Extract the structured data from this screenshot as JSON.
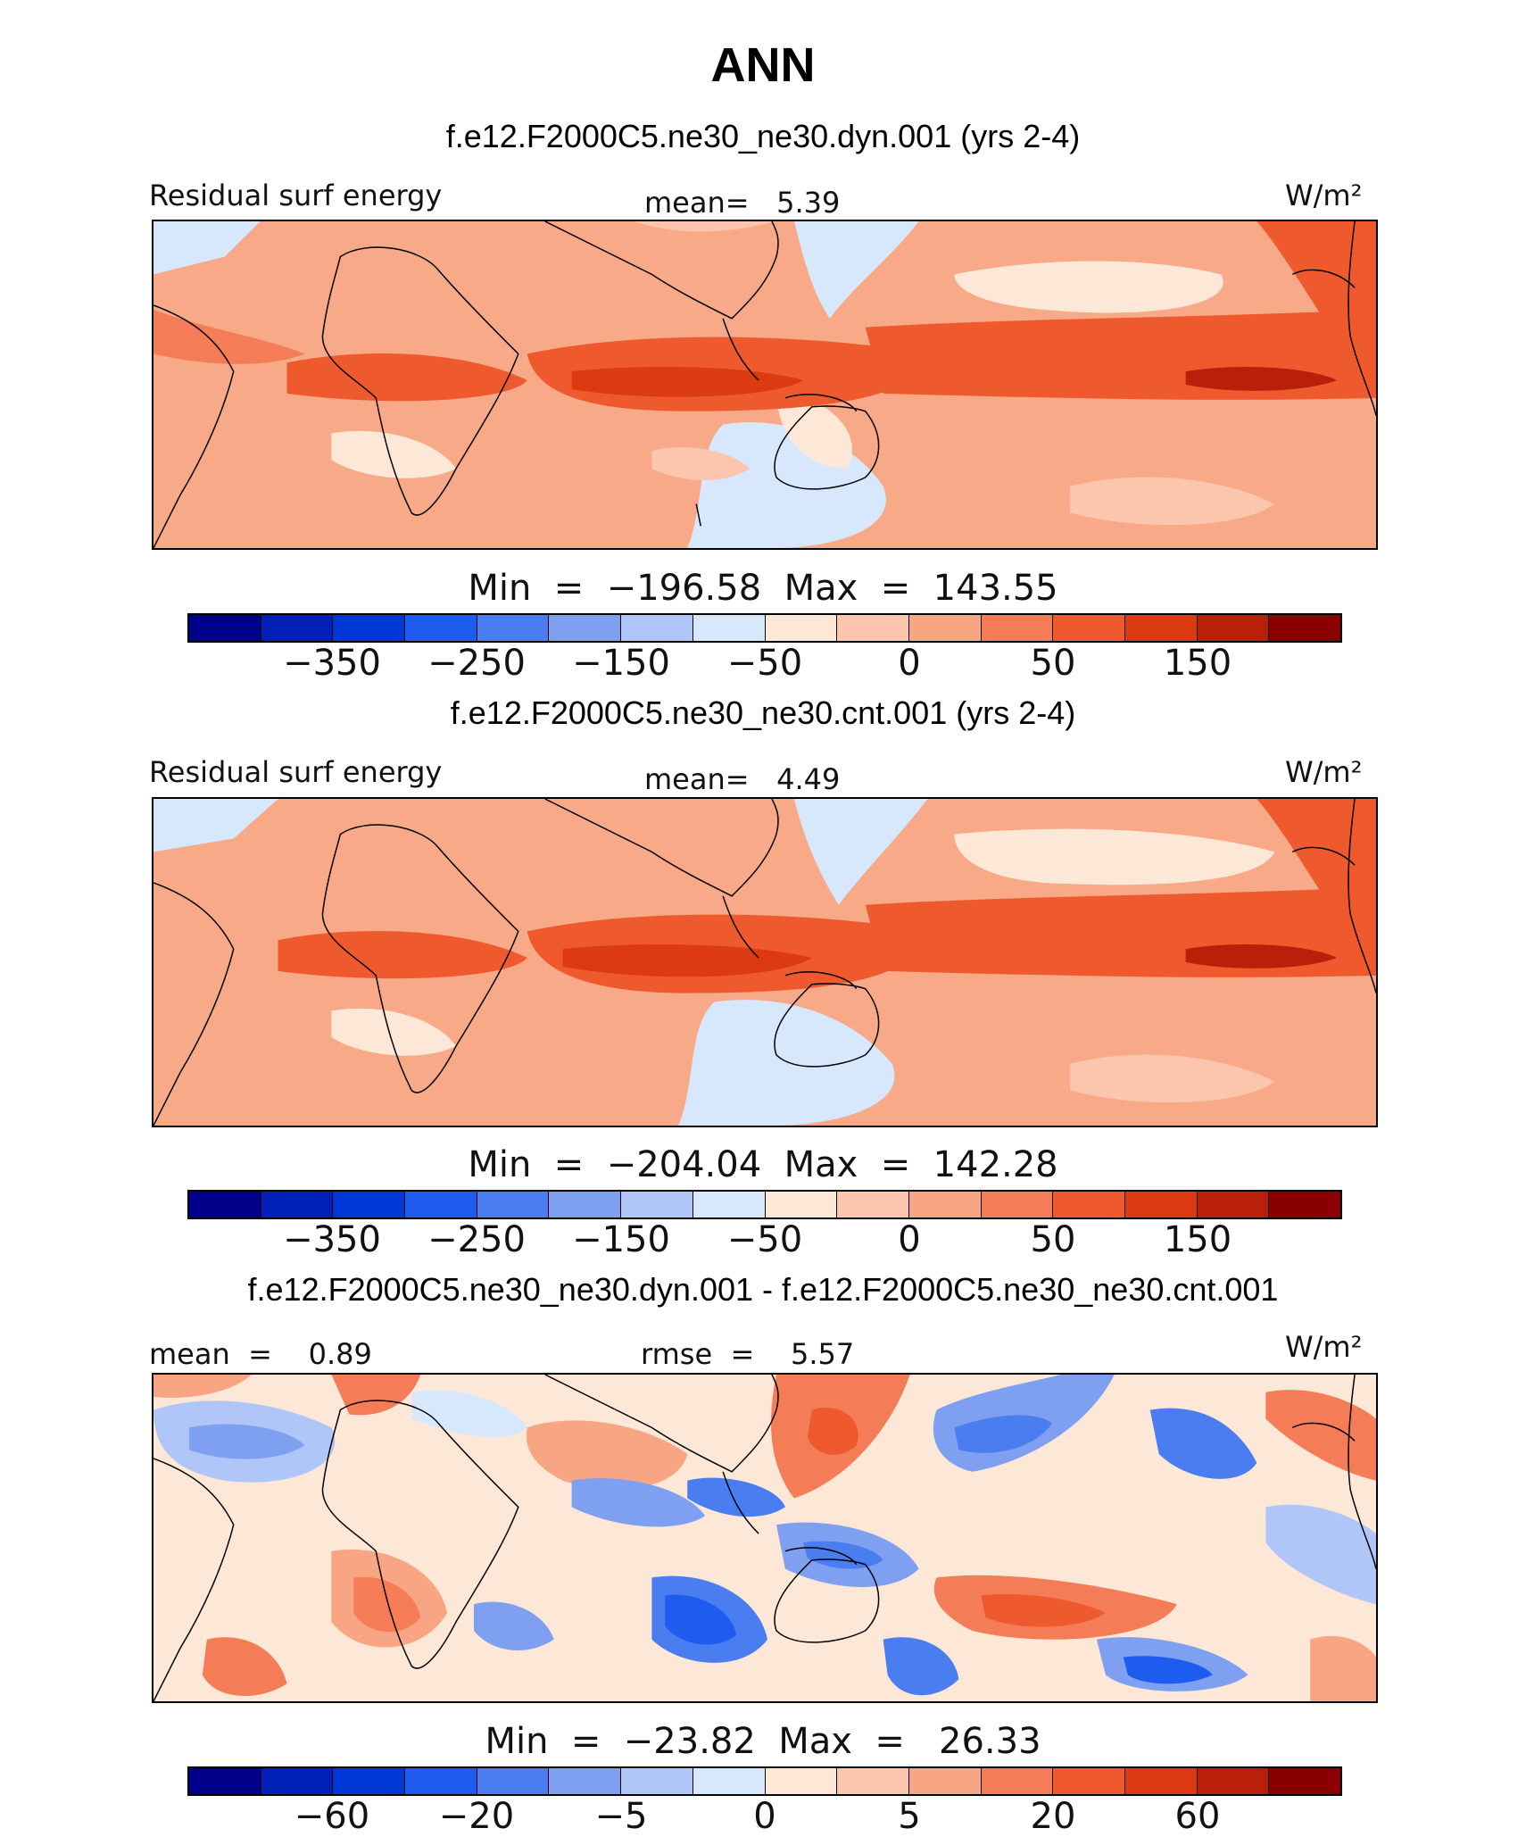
{
  "title": "ANN",
  "colors": {
    "palette": [
      "#00008b",
      "#0020b8",
      "#0038d8",
      "#1e5cf0",
      "#4a7ef0",
      "#7fa0f0",
      "#b0c6f8",
      "#d8e8fc",
      "#fde8d8",
      "#fcc6ae",
      "#f8a584",
      "#f47c56",
      "#ee5a2e",
      "#dc3a10",
      "#b8200a",
      "#8a0000"
    ],
    "background_ocean": "#f7a988",
    "land": "#f3a180"
  },
  "panels": [
    {
      "case_title": "f.e12.F2000C5.ne30_ne30.dyn.001 (yrs 2-4)",
      "left_label": "Residual surf energy",
      "center_label": "mean=   5.39",
      "units": "W/m²",
      "minmax": "Min  =  −196.58  Max  =  143.55",
      "ticks": [
        "−350",
        "−250",
        "−150",
        "−50",
        "0",
        "50",
        "150"
      ]
    },
    {
      "case_title": "f.e12.F2000C5.ne30_ne30.cnt.001 (yrs 2-4)",
      "left_label": "Residual surf energy",
      "center_label": "mean=   4.49",
      "units": "W/m²",
      "minmax": "Min  =  −204.04  Max  =  142.28",
      "ticks": [
        "−350",
        "−250",
        "−150",
        "−50",
        "0",
        "50",
        "150"
      ]
    },
    {
      "case_title": "f.e12.F2000C5.ne30_ne30.dyn.001 - f.e12.F2000C5.ne30_ne30.cnt.001",
      "left_label": "mean  =    0.89",
      "center_label": "rmse  =    5.57",
      "units": "W/m²",
      "minmax": "Min  =  −23.82  Max  =   26.33",
      "ticks": [
        "−60",
        "−20",
        "−5",
        "0",
        "5",
        "20",
        "60"
      ]
    }
  ]
}
